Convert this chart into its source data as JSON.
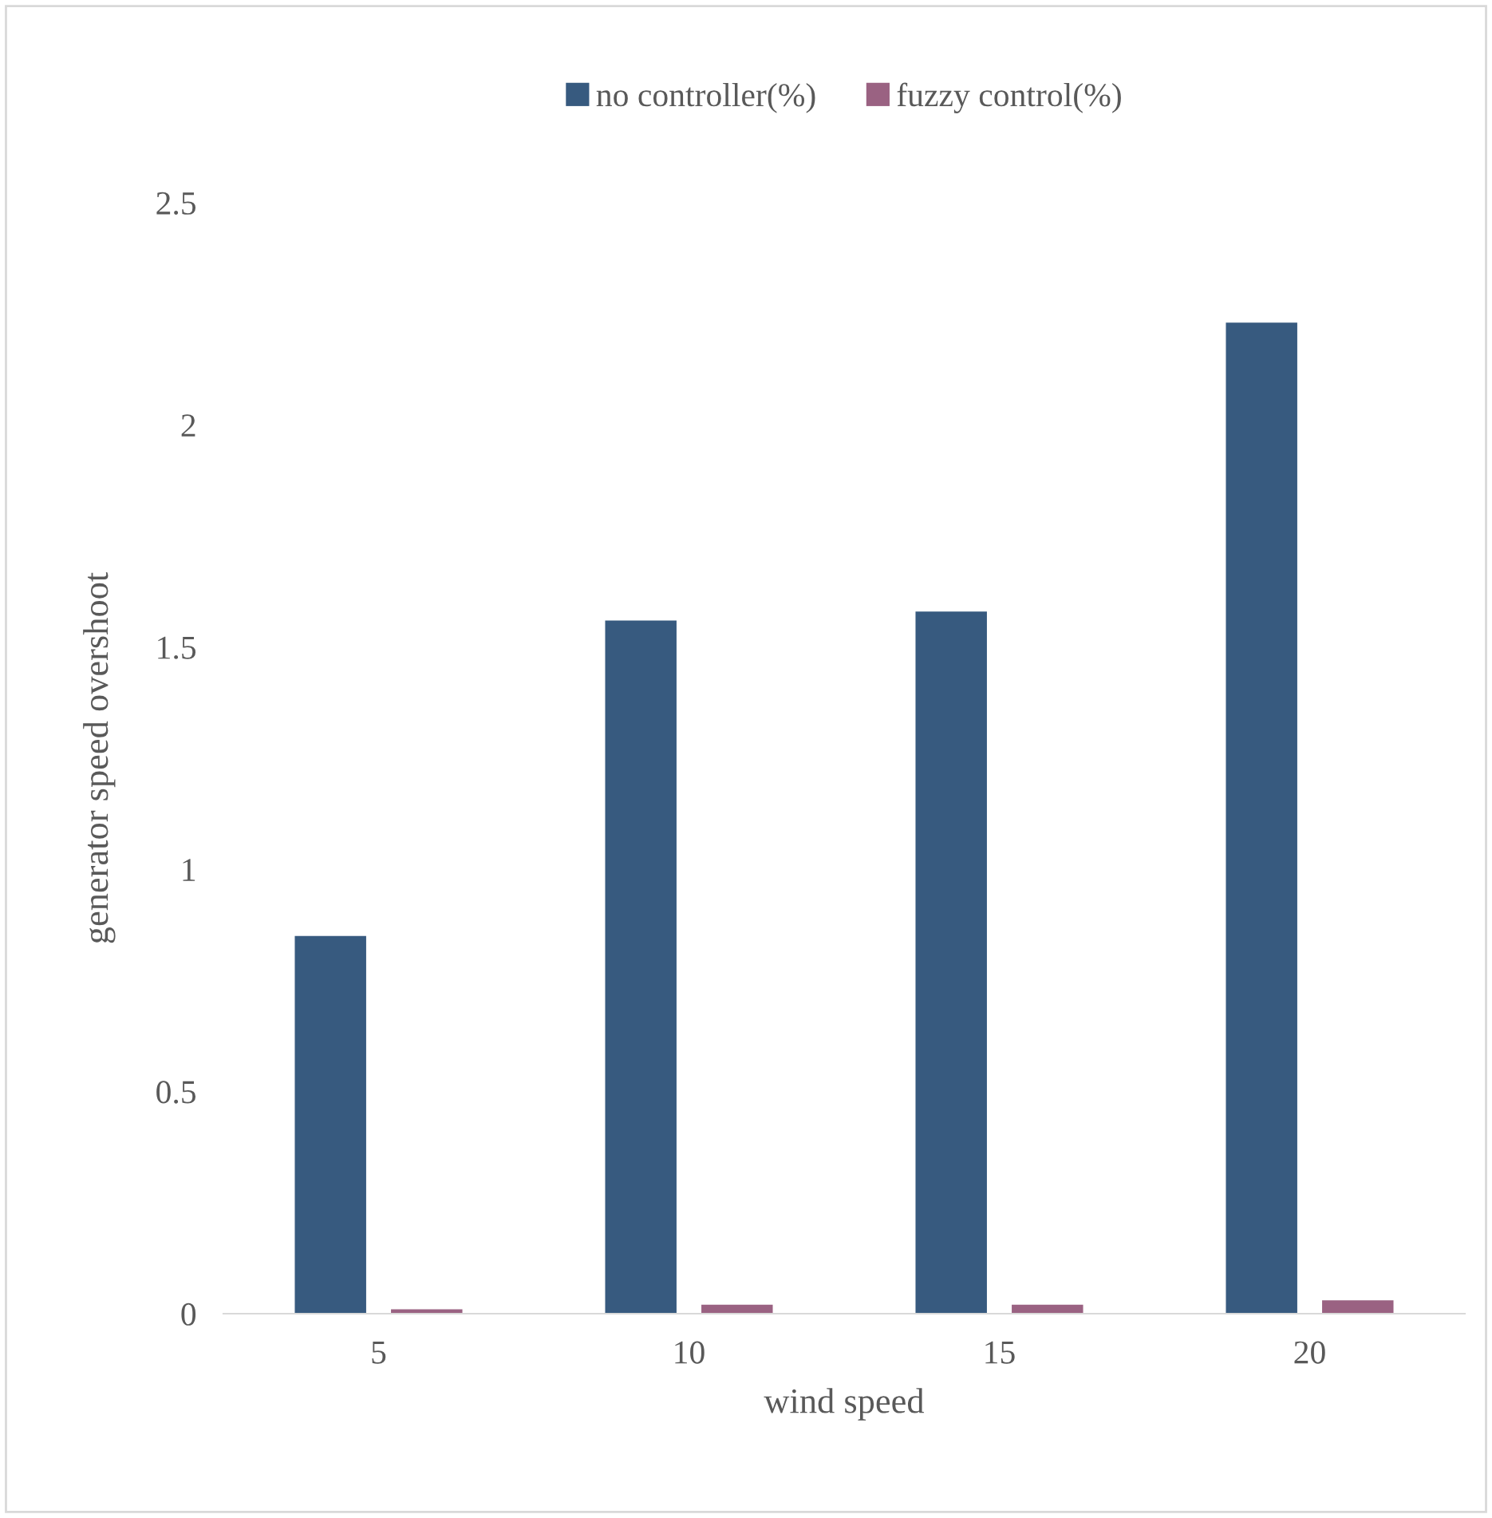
{
  "chart_data": {
    "type": "bar",
    "xlabel": "wind speed",
    "ylabel": "generator speed overshoot",
    "categories": [
      "5",
      "10",
      "15",
      "20"
    ],
    "series": [
      {
        "name": "no controller(%)",
        "color": "#375a7f",
        "values": [
          0.85,
          1.56,
          1.58,
          2.23
        ]
      },
      {
        "name": "fuzzy control(%)",
        "color": "#9a6282",
        "values": [
          0.01,
          0.02,
          0.02,
          0.03
        ]
      }
    ],
    "ylim": [
      0,
      2.5
    ],
    "yticks": [
      0,
      0.5,
      1,
      1.5,
      2,
      2.5
    ],
    "grid": false,
    "legend": "top"
  }
}
